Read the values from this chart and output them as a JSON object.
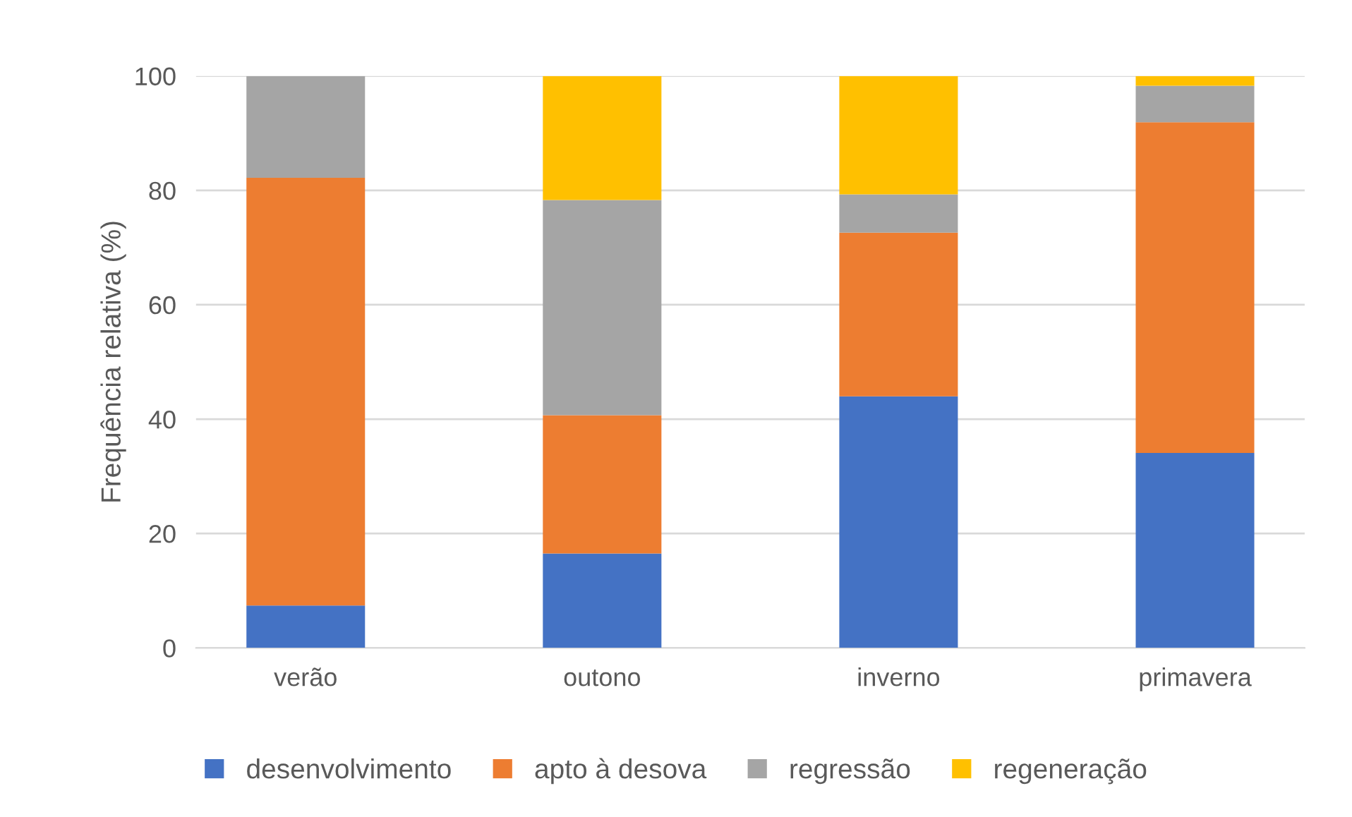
{
  "chart_data": {
    "type": "bar",
    "stacked": true,
    "ylabel": "Frequência relativa (%)",
    "categories": [
      "verão",
      "outono",
      "inverno",
      "primavera"
    ],
    "series": [
      {
        "name": "desenvolvimento",
        "color": "#4472c4",
        "values": [
          7.4,
          16.5,
          44.0,
          34.1
        ]
      },
      {
        "name": "apto à desova",
        "color": "#ed7d31",
        "values": [
          74.8,
          24.2,
          28.6,
          57.8
        ]
      },
      {
        "name": "regressão",
        "color": "#a5a5a5",
        "values": [
          17.8,
          37.6,
          6.7,
          6.4
        ]
      },
      {
        "name": "regeneração",
        "color": "#ffc000",
        "values": [
          0,
          21.7,
          20.7,
          1.7
        ]
      }
    ],
    "ylim": [
      0,
      100
    ],
    "yticks": [
      0,
      20,
      40,
      60,
      80,
      100
    ],
    "grid": "y",
    "legend": "bottom"
  }
}
